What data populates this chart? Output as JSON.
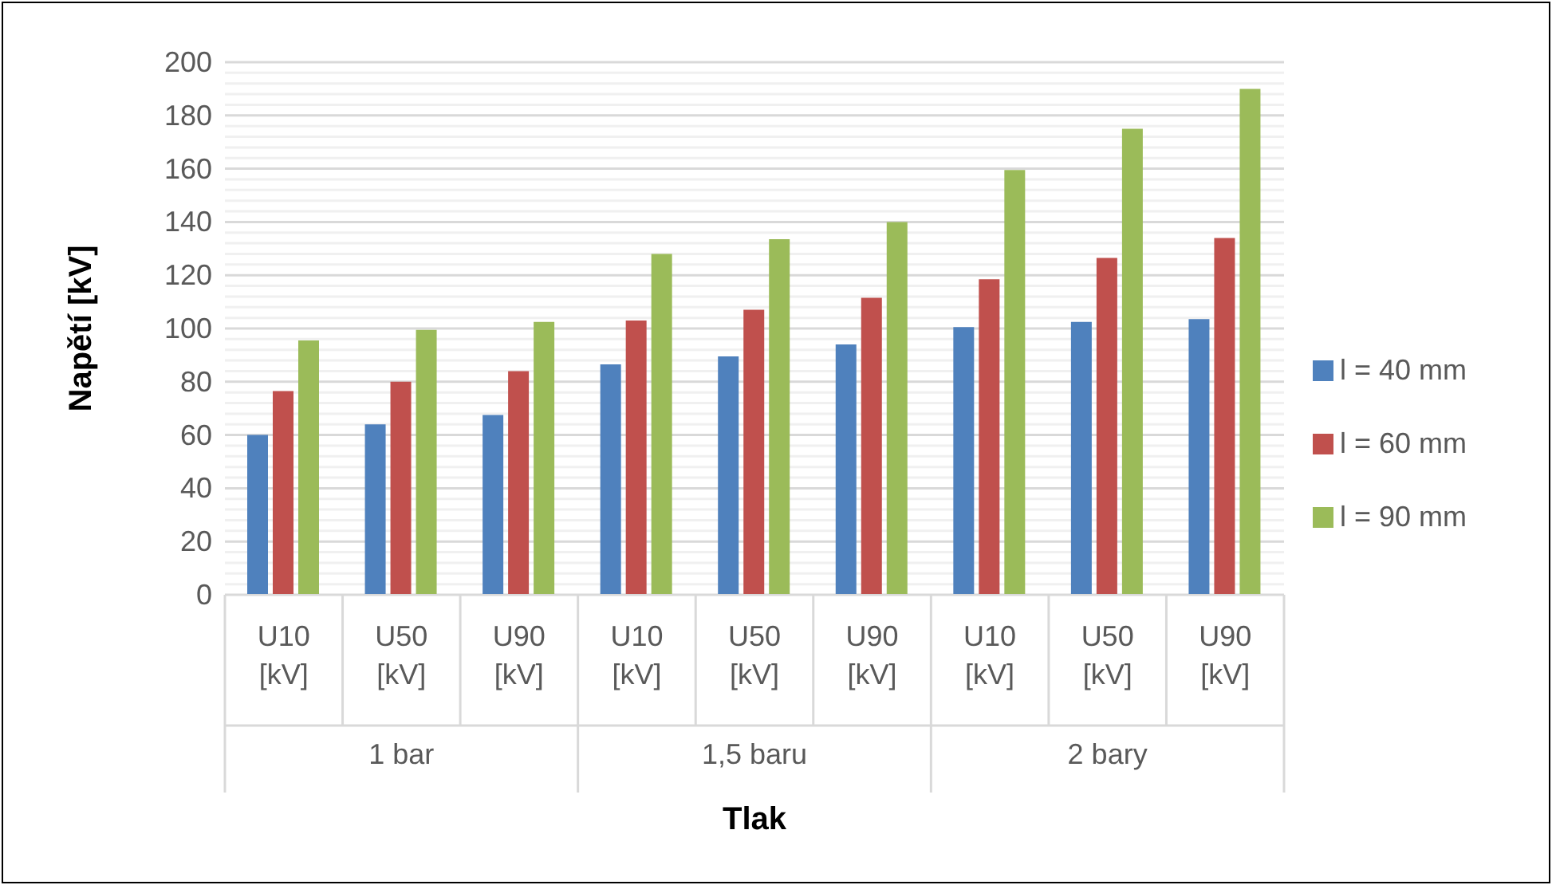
{
  "chart_data": {
    "type": "bar",
    "xlabel": "Tlak",
    "ylabel": "Napětí [kV]",
    "categories": [
      "U10 [kV]",
      "U50 [kV]",
      "U90 [kV]",
      "U10 [kV]",
      "U50 [kV]",
      "U90 [kV]",
      "U10 [kV]",
      "U50 [kV]",
      "U90 [kV]"
    ],
    "annotations": [
      "1 bar",
      "1,5 baru",
      "2 bary"
    ],
    "series": [
      {
        "name": "l = 40 mm",
        "color": "#4f81bd",
        "values": [
          60,
          64,
          67.5,
          86.5,
          89.5,
          94,
          100.5,
          102.5,
          103.5
        ]
      },
      {
        "name": "l = 60 mm",
        "color": "#c0504d",
        "values": [
          76.5,
          80,
          84,
          103,
          107,
          111.5,
          118.5,
          126.5,
          134
        ]
      },
      {
        "name": "l = 90 mm",
        "color": "#9bbb59",
        "values": [
          95.5,
          99.5,
          102.5,
          128,
          133.5,
          140,
          159.5,
          175,
          190
        ]
      }
    ],
    "ylim": [
      0,
      200
    ],
    "yticks": [
      0,
      {
        "value": 4,
        "label": null
      },
      {
        "value": 8,
        "label": null
      },
      {
        "value": 12,
        "label": null
      },
      {
        "value": 16,
        "label": null
      },
      20,
      {
        "value": 24,
        "label": null
      },
      {
        "value": 28,
        "label": null
      },
      {
        "value": 32,
        "label": null
      },
      {
        "value": 36,
        "label": null
      },
      40,
      {
        "value": 44,
        "label": null
      },
      {
        "value": 48,
        "label": null
      },
      {
        "value": 52,
        "label": null
      },
      {
        "value": 56,
        "label": null
      },
      60,
      {
        "value": 64,
        "label": null
      },
      {
        "value": 68,
        "label": null
      },
      {
        "value": 72,
        "label": null
      },
      {
        "value": 76,
        "label": null
      },
      80,
      {
        "value": 84,
        "label": null
      },
      {
        "value": 88,
        "label": null
      },
      {
        "value": 92,
        "label": null
      },
      {
        "value": 96,
        "label": null
      },
      100,
      {
        "value": 104,
        "label": null
      },
      {
        "value": 108,
        "label": null
      },
      {
        "value": 112,
        "label": null
      },
      {
        "value": 116,
        "label": null
      },
      120,
      {
        "value": 124,
        "label": null
      },
      {
        "value": 128,
        "label": null
      },
      {
        "value": 132,
        "label": null
      },
      {
        "value": 136,
        "label": null
      },
      140,
      {
        "value": 144,
        "label": null
      },
      {
        "value": 148,
        "label": null
      },
      {
        "value": 152,
        "label": null
      },
      {
        "value": 156,
        "label": null
      },
      160,
      {
        "value": 164,
        "label": null
      },
      {
        "value": 168,
        "label": null
      },
      {
        "value": 172,
        "label": null
      },
      {
        "value": 176,
        "label": null
      },
      180,
      {
        "value": 184,
        "label": null
      },
      {
        "value": 188,
        "label": null
      },
      {
        "value": 192,
        "label": null
      },
      {
        "value": 196,
        "label": null
      },
      200
    ],
    "grid": "y",
    "legend": "right"
  }
}
